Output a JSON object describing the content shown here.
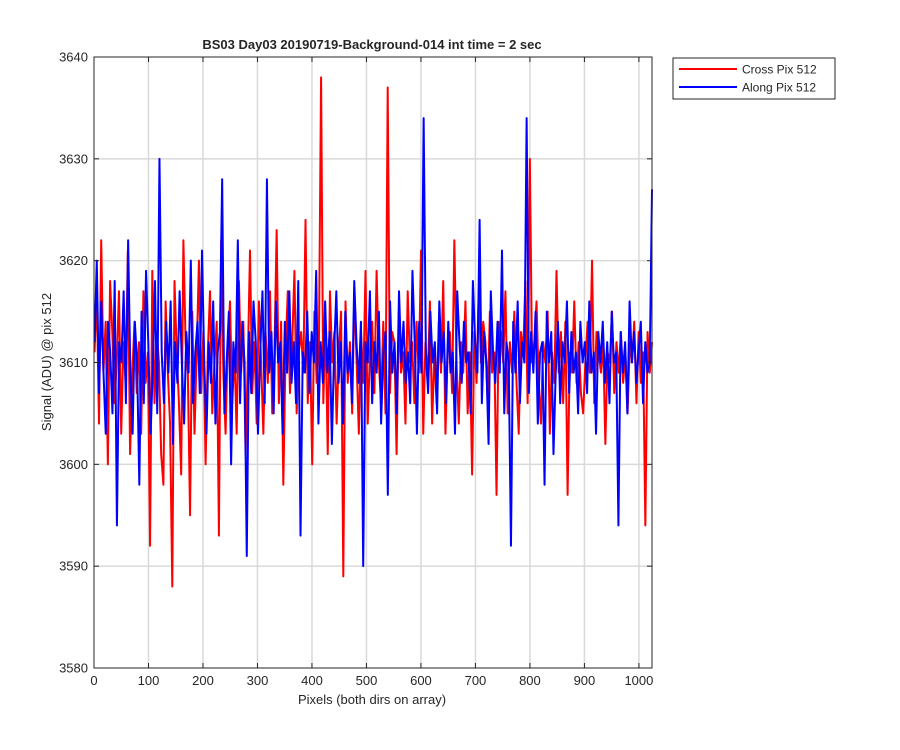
{
  "chart_data": {
    "type": "line",
    "title": "BS03 Day03 20190719-Background-014 int time = 2 sec",
    "xlabel": "Pixels (both dirs on array)",
    "ylabel": "Signal (ADU) @ pix 512",
    "xlim": [
      0,
      1024
    ],
    "ylim": [
      3580,
      3640
    ],
    "xticks": [
      0,
      100,
      200,
      300,
      400,
      500,
      600,
      700,
      800,
      900,
      1000
    ],
    "yticks": [
      3580,
      3590,
      3600,
      3610,
      3620,
      3630,
      3640
    ],
    "grid": true,
    "legend_position": "outside-top-right",
    "x": {
      "start": 1,
      "end": 1024,
      "step": 4
    },
    "series": [
      {
        "name": "Cross Pix 512",
        "color": "#ff0000",
        "values": [
          3611,
          3617,
          3604,
          3622,
          3609,
          3614,
          3600,
          3618,
          3613,
          3606,
          3610,
          3617,
          3603,
          3612,
          3608,
          3621,
          3601,
          3609,
          3614,
          3607,
          3612,
          3603,
          3617,
          3608,
          3611,
          3592,
          3619,
          3606,
          3613,
          3610,
          3601,
          3598,
          3616,
          3609,
          3604,
          3588,
          3618,
          3611,
          3606,
          3599,
          3622,
          3612,
          3609,
          3595,
          3615,
          3603,
          3611,
          3620,
          3607,
          3613,
          3600,
          3611,
          3617,
          3605,
          3610,
          3614,
          3593,
          3622,
          3609,
          3603,
          3612,
          3616,
          3606,
          3611,
          3603,
          3618,
          3609,
          3614,
          3601,
          3610,
          3621,
          3607,
          3612,
          3604,
          3616,
          3610,
          3603,
          3613,
          3608,
          3617,
          3605,
          3611,
          3623,
          3606,
          3614,
          3598,
          3611,
          3617,
          3607,
          3612,
          3619,
          3605,
          3611,
          3613,
          3609,
          3624,
          3606,
          3612,
          3600,
          3615,
          3608,
          3611,
          3638,
          3606,
          3614,
          3601,
          3617,
          3610,
          3613,
          3604,
          3611,
          3615,
          3589,
          3616,
          3608,
          3612,
          3605,
          3617,
          3610,
          3603,
          3613,
          3608,
          3619,
          3604,
          3611,
          3614,
          3607,
          3619,
          3610,
          3606,
          3614,
          3605,
          3637,
          3607,
          3613,
          3612,
          3601,
          3615,
          3609,
          3611,
          3604,
          3617,
          3610,
          3612,
          3606,
          3614,
          3609,
          3621,
          3603,
          3612,
          3608,
          3616,
          3604,
          3611,
          3606,
          3614,
          3609,
          3618,
          3603,
          3611,
          3613,
          3607,
          3622,
          3610,
          3604,
          3612,
          3609,
          3616,
          3605,
          3611,
          3599,
          3613,
          3608,
          3617,
          3610,
          3614,
          3612,
          3606,
          3615,
          3609,
          3611,
          3597,
          3614,
          3613,
          3610,
          3617,
          3605,
          3612,
          3609,
          3615,
          3608,
          3603,
          3613,
          3611,
          3618,
          3606,
          3630,
          3610,
          3612,
          3616,
          3608,
          3604,
          3612,
          3610,
          3615,
          3603,
          3611,
          3608,
          3619,
          3609,
          3613,
          3606,
          3614,
          3597,
          3611,
          3609,
          3616,
          3608,
          3612,
          3607,
          3605,
          3610,
          3614,
          3609,
          3620,
          3606,
          3613,
          3611,
          3609,
          3612,
          3602,
          3611,
          3610,
          3615,
          3607,
          3612,
          3609,
          3613,
          3608,
          3611,
          3605,
          3612,
          3610,
          3614,
          3606,
          3613,
          3608,
          3611,
          3594,
          3613,
          3609,
          3612
        ]
      },
      {
        "name": "Along Pix 512",
        "color": "#0000ff",
        "values": [
          3612,
          3620,
          3607,
          3616,
          3609,
          3603,
          3614,
          3611,
          3605,
          3618,
          3594,
          3612,
          3610,
          3617,
          3606,
          3622,
          3609,
          3603,
          3614,
          3610,
          3598,
          3615,
          3606,
          3619,
          3612,
          3603,
          3609,
          3618,
          3605,
          3630,
          3611,
          3606,
          3614,
          3609,
          3616,
          3602,
          3612,
          3608,
          3617,
          3610,
          3604,
          3613,
          3609,
          3620,
          3606,
          3611,
          3614,
          3607,
          3621,
          3610,
          3603,
          3612,
          3608,
          3616,
          3604,
          3611,
          3613,
          3628,
          3605,
          3610,
          3615,
          3600,
          3612,
          3609,
          3622,
          3606,
          3614,
          3610,
          3591,
          3613,
          3607,
          3616,
          3612,
          3603,
          3611,
          3617,
          3606,
          3628,
          3609,
          3613,
          3605,
          3616,
          3610,
          3612,
          3603,
          3614,
          3609,
          3617,
          3608,
          3612,
          3606,
          3618,
          3593,
          3611,
          3609,
          3615,
          3607,
          3613,
          3610,
          3619,
          3604,
          3612,
          3608,
          3616,
          3609,
          3613,
          3602,
          3611,
          3617,
          3608,
          3612,
          3604,
          3615,
          3609,
          3611,
          3606,
          3618,
          3612,
          3608,
          3614,
          3590,
          3612,
          3610,
          3617,
          3606,
          3612,
          3609,
          3615,
          3604,
          3611,
          3613,
          3597,
          3616,
          3609,
          3612,
          3605,
          3617,
          3610,
          3614,
          3608,
          3611,
          3606,
          3619,
          3612,
          3603,
          3614,
          3609,
          3634,
          3611,
          3607,
          3615,
          3610,
          3612,
          3605,
          3616,
          3610,
          3613,
          3606,
          3614,
          3609,
          3611,
          3603,
          3617,
          3612,
          3608,
          3614,
          3610,
          3611,
          3605,
          3618,
          3612,
          3609,
          3624,
          3606,
          3613,
          3610,
          3602,
          3617,
          3611,
          3608,
          3614,
          3609,
          3621,
          3605,
          3612,
          3610,
          3592,
          3614,
          3609,
          3616,
          3606,
          3612,
          3610,
          3634,
          3607,
          3613,
          3609,
          3615,
          3604,
          3611,
          3612,
          3598,
          3615,
          3610,
          3613,
          3601,
          3609,
          3614,
          3606,
          3612,
          3610,
          3616,
          3607,
          3613,
          3609,
          3611,
          3605,
          3614,
          3610,
          3612,
          3607,
          3616,
          3609,
          3611,
          3603,
          3613,
          3610,
          3614,
          3608,
          3612,
          3606,
          3615,
          3610,
          3611,
          3594,
          3613,
          3609,
          3612,
          3605,
          3616,
          3610,
          3613,
          3608,
          3611,
          3614,
          3606,
          3612,
          3609,
          3610,
          3627
        ]
      }
    ]
  }
}
